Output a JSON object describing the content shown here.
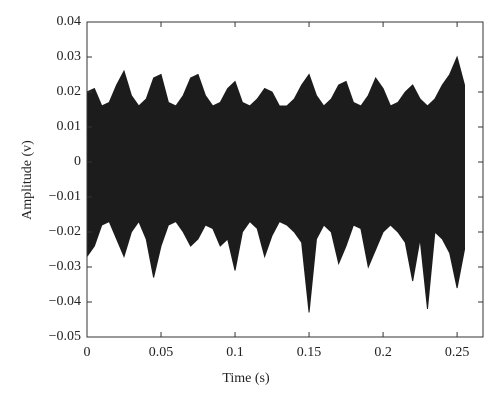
{
  "chart_data": {
    "type": "band",
    "x_label": "Time (s)",
    "y_label": "Amplitude (v)",
    "x": [
      0,
      0.005,
      0.01,
      0.015,
      0.02,
      0.025,
      0.03,
      0.035,
      0.04,
      0.045,
      0.05,
      0.055,
      0.06,
      0.065,
      0.07,
      0.075,
      0.08,
      0.085,
      0.09,
      0.095,
      0.1,
      0.105,
      0.11,
      0.115,
      0.12,
      0.125,
      0.13,
      0.135,
      0.14,
      0.145,
      0.15,
      0.155,
      0.16,
      0.165,
      0.17,
      0.175,
      0.18,
      0.185,
      0.19,
      0.195,
      0.2,
      0.205,
      0.21,
      0.215,
      0.22,
      0.225,
      0.23,
      0.235,
      0.24,
      0.245,
      0.25,
      0.255
    ],
    "high": [
      0.02,
      0.021,
      0.016,
      0.017,
      0.022,
      0.026,
      0.019,
      0.016,
      0.018,
      0.024,
      0.025,
      0.017,
      0.016,
      0.019,
      0.024,
      0.025,
      0.019,
      0.016,
      0.017,
      0.021,
      0.023,
      0.017,
      0.016,
      0.018,
      0.021,
      0.02,
      0.016,
      0.016,
      0.018,
      0.022,
      0.025,
      0.019,
      0.016,
      0.018,
      0.022,
      0.023,
      0.017,
      0.016,
      0.019,
      0.024,
      0.021,
      0.016,
      0.017,
      0.02,
      0.022,
      0.018,
      0.016,
      0.018,
      0.022,
      0.025,
      0.03,
      0.022
    ],
    "low": [
      -0.027,
      -0.024,
      -0.018,
      -0.017,
      -0.022,
      -0.027,
      -0.02,
      -0.017,
      -0.022,
      -0.033,
      -0.024,
      -0.018,
      -0.017,
      -0.02,
      -0.024,
      -0.022,
      -0.018,
      -0.019,
      -0.024,
      -0.022,
      -0.031,
      -0.02,
      -0.017,
      -0.019,
      -0.027,
      -0.021,
      -0.017,
      -0.018,
      -0.02,
      -0.023,
      -0.043,
      -0.022,
      -0.018,
      -0.02,
      -0.029,
      -0.024,
      -0.018,
      -0.019,
      -0.03,
      -0.025,
      -0.02,
      -0.018,
      -0.02,
      -0.023,
      -0.034,
      -0.022,
      -0.042,
      -0.02,
      -0.022,
      -0.026,
      -0.036,
      -0.025
    ],
    "color": "#1c1c1c",
    "xlim": [
      0,
      0.2675
    ],
    "xticks": [
      0,
      0.05,
      0.1,
      0.15,
      0.2,
      0.25
    ],
    "ylim": [
      -0.05,
      0.04
    ],
    "yticks": [
      {
        "value": -0.05,
        "label": "−0.05"
      },
      {
        "value": -0.04,
        "label": "−0.04"
      },
      {
        "value": -0.03,
        "label": "−0.03"
      },
      {
        "value": -0.02,
        "label": "−0.02"
      },
      {
        "value": -0.01,
        "label": "−0.01"
      },
      0,
      0.01,
      0.02,
      0.03,
      0.04
    ],
    "grid": false
  }
}
